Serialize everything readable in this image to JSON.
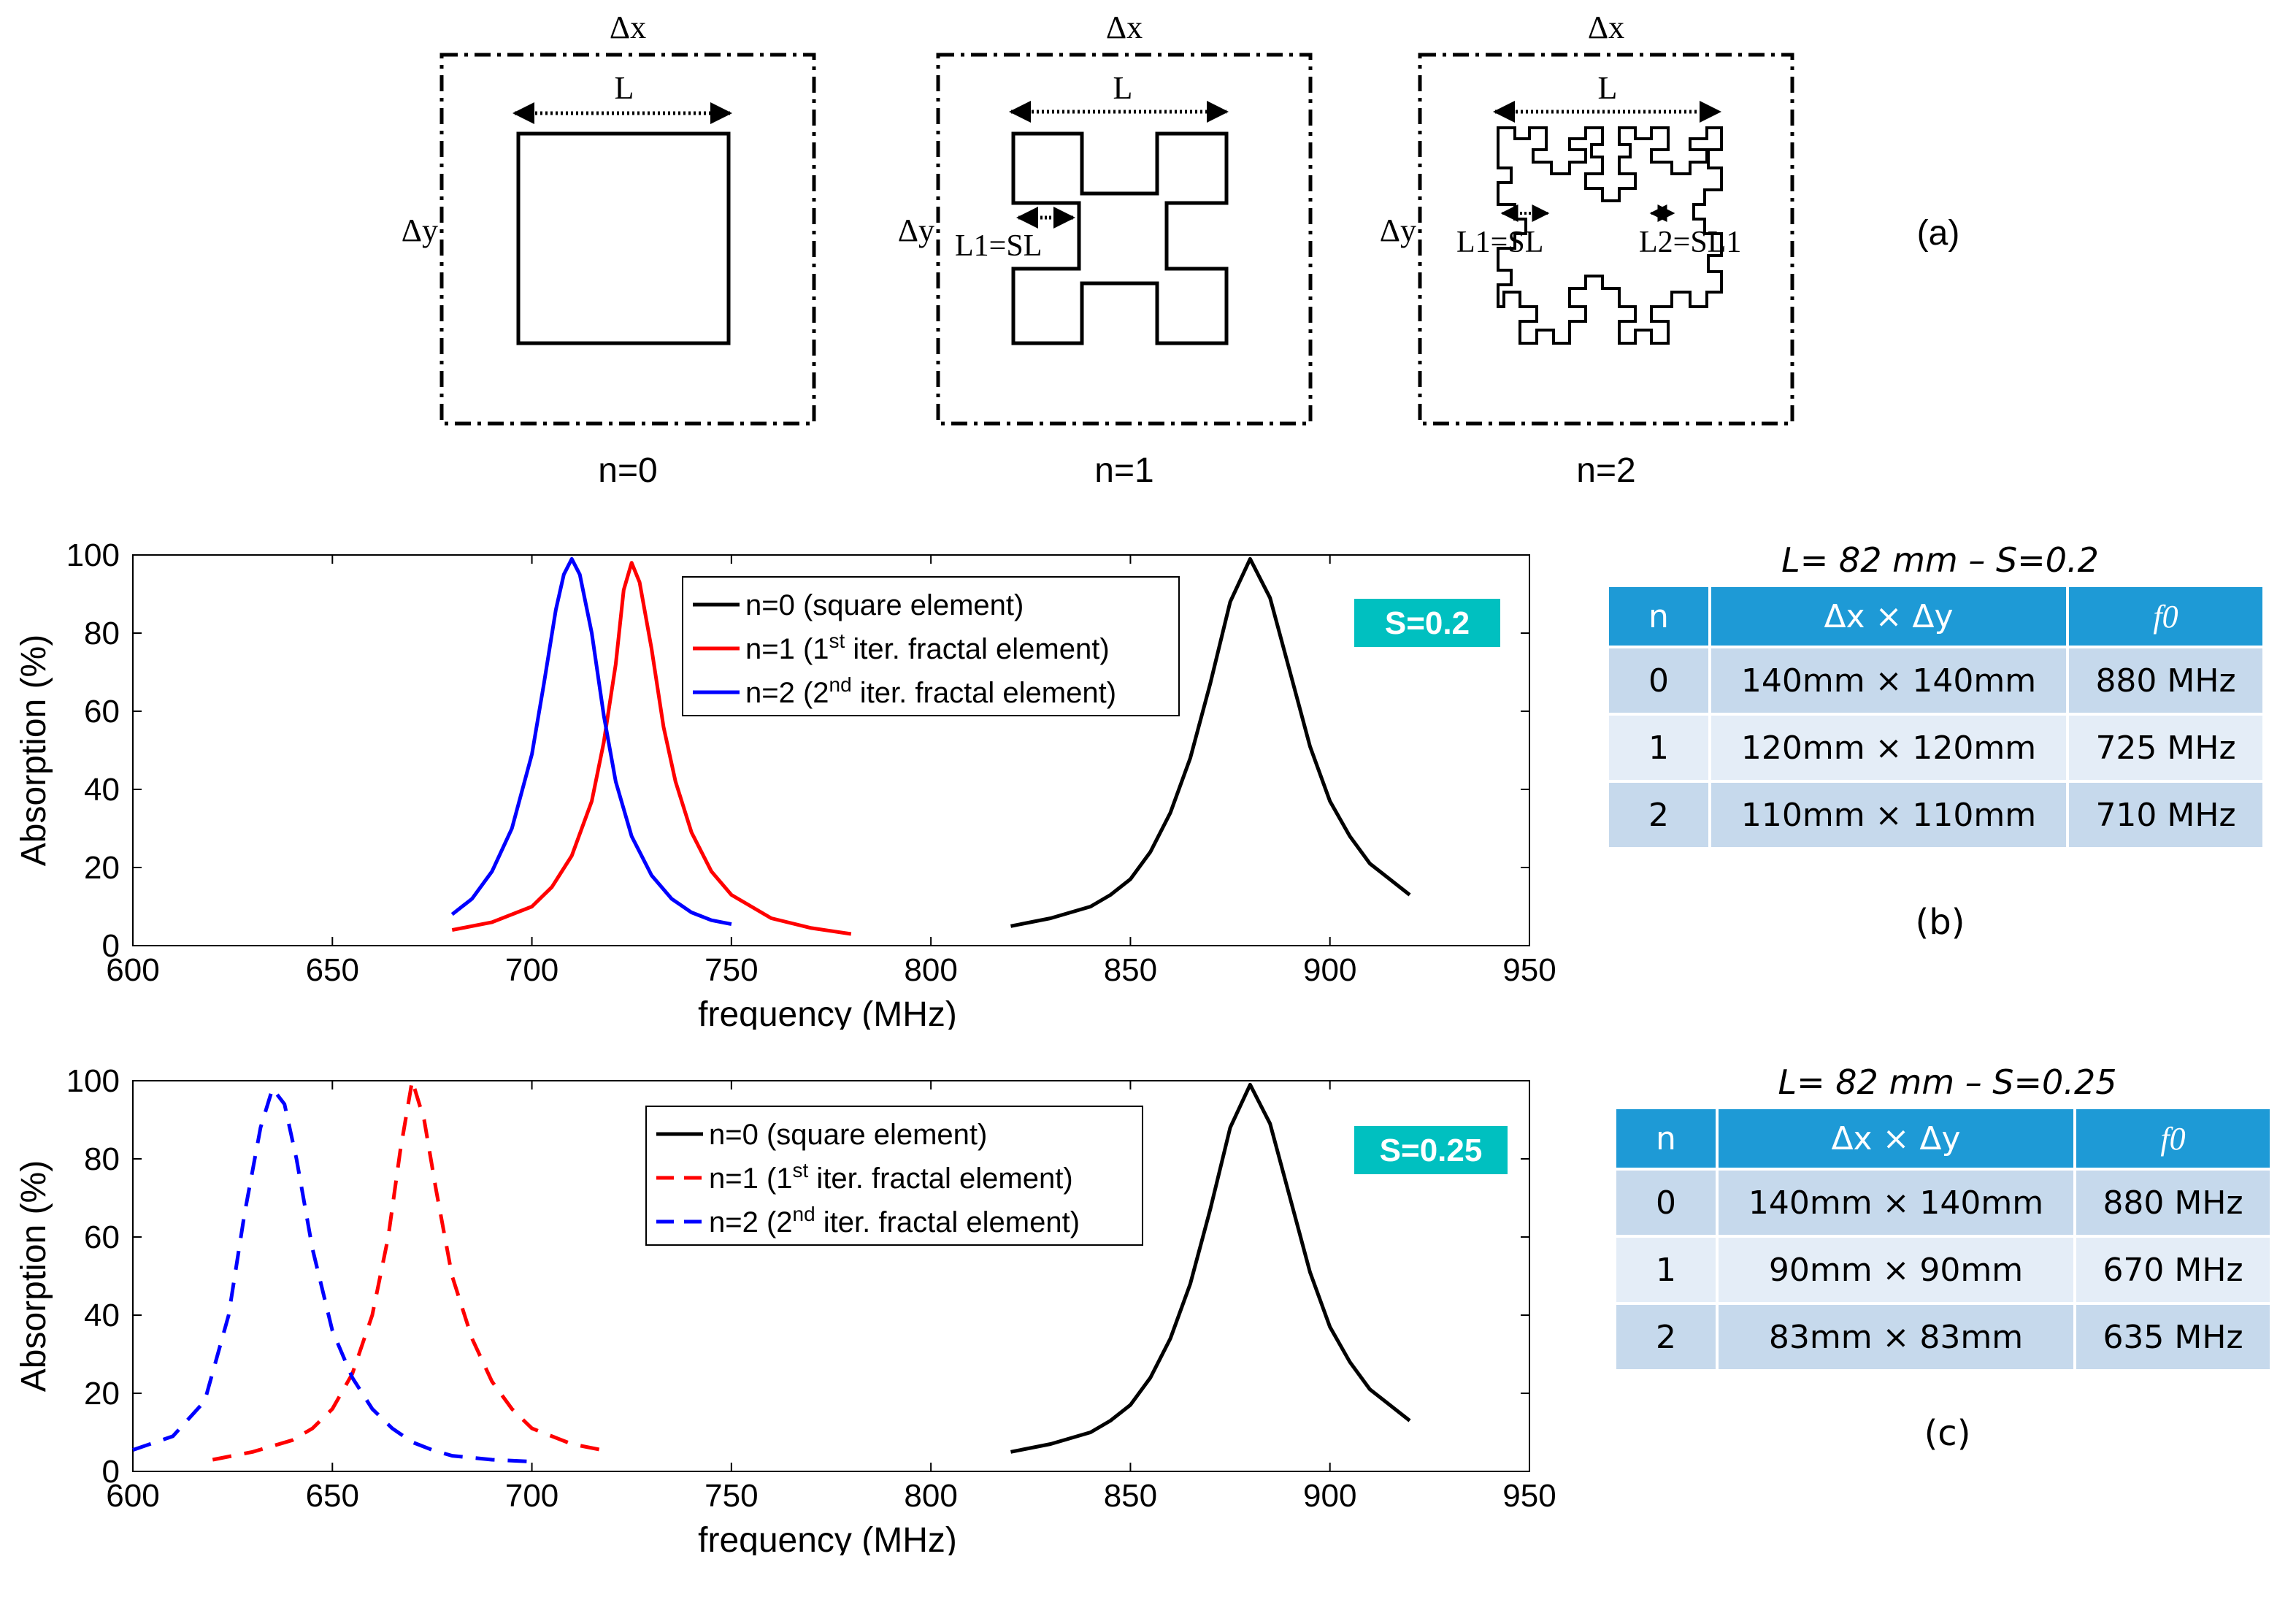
{
  "geometry": {
    "cells": [
      {
        "dx_label": "Δx",
        "dy_label": "Δy",
        "l_label": "L",
        "caption": "n=0"
      },
      {
        "dx_label": "Δx",
        "dy_label": "Δy",
        "l_label": "L",
        "l1_label": "L1=SL",
        "caption": "n=1"
      },
      {
        "dx_label": "Δx",
        "dy_label": "Δy",
        "l_label": "L",
        "l1_label": "L1=SL",
        "l2_label": "L2=SL1",
        "caption": "n=2"
      }
    ],
    "panel_label": "(a)"
  },
  "tables": [
    {
      "title": "L= 82 mm – S=0.2",
      "headers": [
        "n",
        "Δx × Δy",
        "f0"
      ],
      "rows": [
        [
          "0",
          "140mm × 140mm",
          "880 MHz"
        ],
        [
          "1",
          "120mm × 120mm",
          "725 MHz"
        ],
        [
          "2",
          "110mm × 110mm",
          "710 MHz"
        ]
      ],
      "panel_label": "(b)"
    },
    {
      "title": "L= 82 mm – S=0.25",
      "headers": [
        "n",
        "Δx × Δy",
        "f0"
      ],
      "rows": [
        [
          "0",
          "140mm × 140mm",
          "880 MHz"
        ],
        [
          "1",
          "90mm × 90mm",
          "670 MHz"
        ],
        [
          "2",
          "83mm × 83mm",
          "635 MHz"
        ]
      ],
      "panel_label": "(c)"
    }
  ],
  "colors": {
    "black": "#000000",
    "red": "#ff0000",
    "blue": "#0000ff",
    "badge": "#00c0c0",
    "header": "#1e9ad6"
  },
  "chart_data": [
    {
      "type": "line",
      "xlabel": "frequency (MHz)",
      "ylabel": "Absorption (%)",
      "xlim": [
        600,
        950
      ],
      "ylim": [
        0,
        100
      ],
      "xticks": [
        600,
        650,
        700,
        750,
        800,
        850,
        900,
        950
      ],
      "yticks": [
        0,
        20,
        40,
        60,
        80,
        100
      ],
      "badge": "S=0.2",
      "legend_position": "top-center",
      "series": [
        {
          "name": "n=0 (square element)",
          "legend_parts": [
            "n=0 (square element)"
          ],
          "color": "#000000",
          "dash": false,
          "x": [
            820,
            830,
            840,
            845,
            850,
            855,
            860,
            865,
            870,
            875,
            880,
            885,
            890,
            895,
            900,
            905,
            910,
            920
          ],
          "y": [
            5,
            7,
            10,
            13,
            17,
            24,
            34,
            48,
            67,
            88,
            99,
            89,
            70,
            51,
            37,
            28,
            21,
            13
          ]
        },
        {
          "name": "n=1 (1st iter. fractal element)",
          "legend_parts": [
            "n=1 (1",
            "st",
            " iter. fractal element)"
          ],
          "color": "#ff0000",
          "dash": false,
          "x": [
            680,
            690,
            700,
            705,
            710,
            715,
            718,
            721,
            723,
            725,
            727,
            730,
            733,
            736,
            740,
            745,
            750,
            760,
            770,
            780
          ],
          "y": [
            4,
            6,
            10,
            15,
            23,
            37,
            52,
            72,
            91,
            98,
            93,
            76,
            56,
            42,
            29,
            19,
            13,
            7,
            4.5,
            3
          ]
        },
        {
          "name": "n=2 (2nd iter. fractal element)",
          "legend_parts": [
            "n=2 (2",
            "nd",
            " iter. fractal element)"
          ],
          "color": "#0000ff",
          "dash": false,
          "x": [
            680,
            685,
            690,
            695,
            700,
            703,
            706,
            708,
            710,
            712,
            715,
            718,
            721,
            725,
            730,
            735,
            740,
            745,
            750
          ],
          "y": [
            8,
            12,
            19,
            30,
            49,
            67,
            86,
            95,
            99,
            95,
            80,
            59,
            42,
            28,
            18,
            12,
            8.5,
            6.5,
            5.5
          ]
        }
      ]
    },
    {
      "type": "line",
      "xlabel": "frequency (MHz)",
      "ylabel": "Absorption (%)",
      "xlim": [
        600,
        950
      ],
      "ylim": [
        0,
        100
      ],
      "xticks": [
        600,
        650,
        700,
        750,
        800,
        850,
        900,
        950
      ],
      "yticks": [
        0,
        20,
        40,
        60,
        80,
        100
      ],
      "badge": "S=0.25",
      "legend_position": "top-center",
      "series": [
        {
          "name": "n=0 (square element)",
          "legend_parts": [
            "n=0 (square element)"
          ],
          "color": "#000000",
          "dash": false,
          "x": [
            820,
            830,
            840,
            845,
            850,
            855,
            860,
            865,
            870,
            875,
            880,
            885,
            890,
            895,
            900,
            905,
            910,
            920
          ],
          "y": [
            5,
            7,
            10,
            13,
            17,
            24,
            34,
            48,
            67,
            88,
            99,
            89,
            70,
            51,
            37,
            28,
            21,
            13
          ]
        },
        {
          "name": "n=1 (1st iter. fractal element)",
          "legend_parts": [
            "n=1 (1",
            "st",
            " iter. fractal element)"
          ],
          "color": "#ff0000",
          "dash": true,
          "x": [
            620,
            630,
            640,
            645,
            650,
            655,
            660,
            664,
            667,
            670,
            673,
            676,
            680,
            685,
            690,
            695,
            700,
            710,
            720
          ],
          "y": [
            3,
            5,
            8,
            11,
            16,
            25,
            40,
            60,
            82,
            100,
            90,
            72,
            50,
            34,
            23,
            16,
            11,
            7,
            5
          ]
        },
        {
          "name": "n=2 (2nd iter. fractal element)",
          "legend_parts": [
            "n=2 (2",
            "nd",
            " iter. fractal element)"
          ],
          "color": "#0000ff",
          "dash": true,
          "x": [
            600,
            610,
            618,
            624,
            628,
            632,
            635,
            638,
            641,
            645,
            650,
            655,
            660,
            665,
            670,
            675,
            680,
            690,
            700
          ],
          "y": [
            5.5,
            9,
            18,
            40,
            66,
            88,
            98,
            94,
            80,
            57,
            36,
            24,
            16,
            11,
            7.5,
            5.5,
            4,
            3,
            2.5
          ]
        }
      ]
    }
  ]
}
